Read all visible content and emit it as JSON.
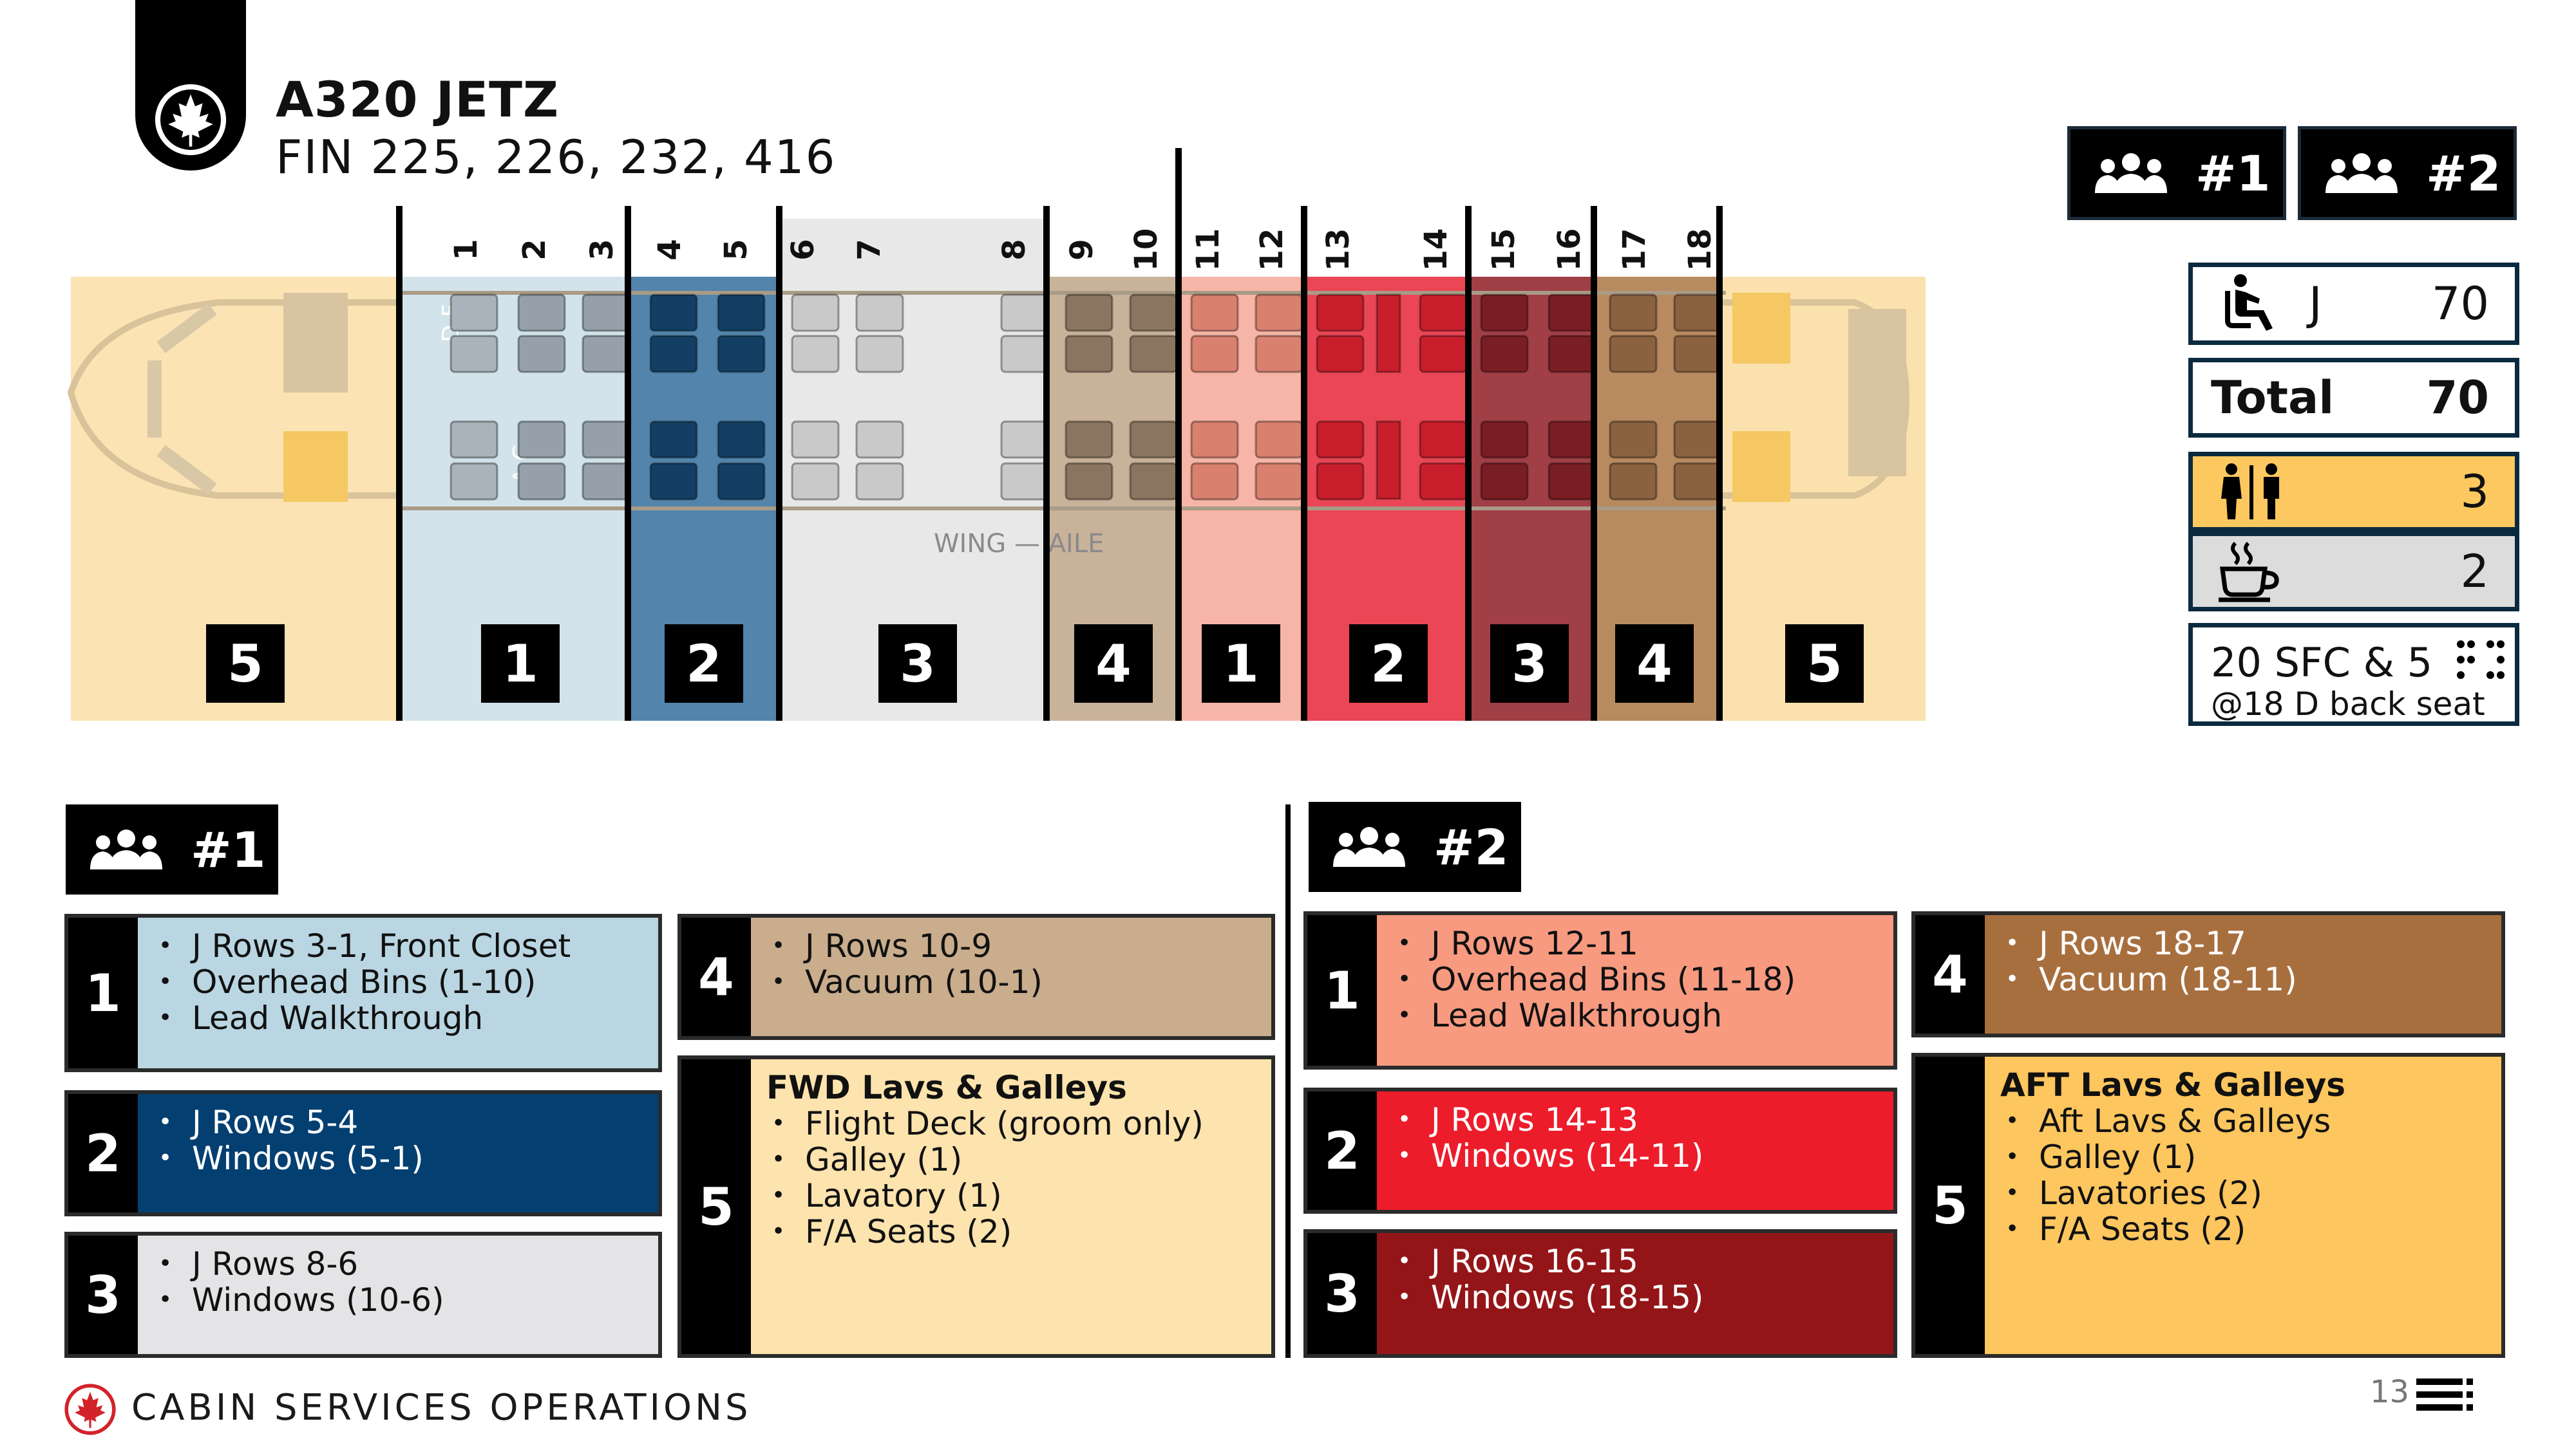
{
  "header": {
    "title": "A320 JETZ",
    "subtitle": "FIN 225, 226, 232, 416"
  },
  "aircraft": {
    "row_labels": [
      "1",
      "2",
      "3",
      "4",
      "5",
      "6",
      "7",
      "8",
      "9",
      "10",
      "11",
      "12",
      "13",
      "14",
      "15",
      "16",
      "17",
      "18"
    ],
    "seat_letters": {
      "left_upper": "D F",
      "left_lower": "A C"
    },
    "wing_label": "WING — AILE",
    "zone_labels": [
      "5",
      "1",
      "2",
      "3",
      "4",
      "1",
      "2",
      "3",
      "4",
      "5"
    ],
    "colors": {
      "zone5": "#fbe3b4",
      "team1_z1": "#cfe1ea",
      "team1_z2": "#4b7ea6",
      "team1_z3": "#e6e6e6",
      "team1_z4": "#c8b096",
      "team2_z1": "#f6a996",
      "team2_z2": "#e83a4a",
      "team2_z3": "#9a2f37",
      "team2_z4": "#b4845a"
    }
  },
  "teams": {
    "team1": "#1",
    "team2": "#2"
  },
  "summary": {
    "class_label": "J",
    "class_count": "70",
    "total_label": "Total",
    "total_count": "70",
    "lavatory_count": "3",
    "galley_count": "2",
    "sfc_line1": "20 SFC & 5",
    "sfc_line2": "@18 D back seat"
  },
  "team1": {
    "header": "#1",
    "zones": [
      {
        "num": "1",
        "items": [
          "J Rows 3-1, Front Closet",
          "Overhead Bins (1-10)",
          "Lead Walkthrough"
        ],
        "color": "#b9d6e2"
      },
      {
        "num": "2",
        "items": [
          "J Rows 5-4",
          "Windows (5-1)"
        ],
        "color": "#033f71"
      },
      {
        "num": "3",
        "items": [
          "J Rows 8-6",
          "Windows (10-6)"
        ],
        "color": "#e4e4e6"
      },
      {
        "num": "4",
        "items": [
          "J Rows 10-9",
          "Vacuum (10-1)"
        ],
        "color": "#c9ad8c"
      },
      {
        "num": "5",
        "heading": "FWD Lavs & Galleys",
        "items": [
          "Flight Deck (groom only)",
          "Galley (1)",
          "Lavatory (1)",
          "F/A Seats (2)"
        ],
        "color": "#fde3ad"
      }
    ]
  },
  "team2": {
    "header": "#2",
    "zones": [
      {
        "num": "1",
        "items": [
          "J Rows 12-11",
          "Overhead Bins (11-18)",
          "Lead Walkthrough"
        ],
        "color": "#f79a80"
      },
      {
        "num": "2",
        "items": [
          "J Rows 14-13",
          "Windows (14-11)"
        ],
        "color": "#ec1c2b"
      },
      {
        "num": "3",
        "items": [
          "J Rows 16-15",
          "Windows (18-15)"
        ],
        "color": "#941518"
      },
      {
        "num": "4",
        "items": [
          "J Rows 18-17",
          "Vacuum (18-11)"
        ],
        "color": "#a86f3e"
      },
      {
        "num": "5",
        "heading": "AFT Lavs & Galleys",
        "items": [
          "Aft Lavs & Galleys",
          "Galley (1)",
          "Lavatories (2)",
          "F/A Seats (2)"
        ],
        "color": "#fdc65e"
      }
    ]
  },
  "footer": {
    "text": "CABIN SERVICES OPERATIONS",
    "page": "13"
  }
}
